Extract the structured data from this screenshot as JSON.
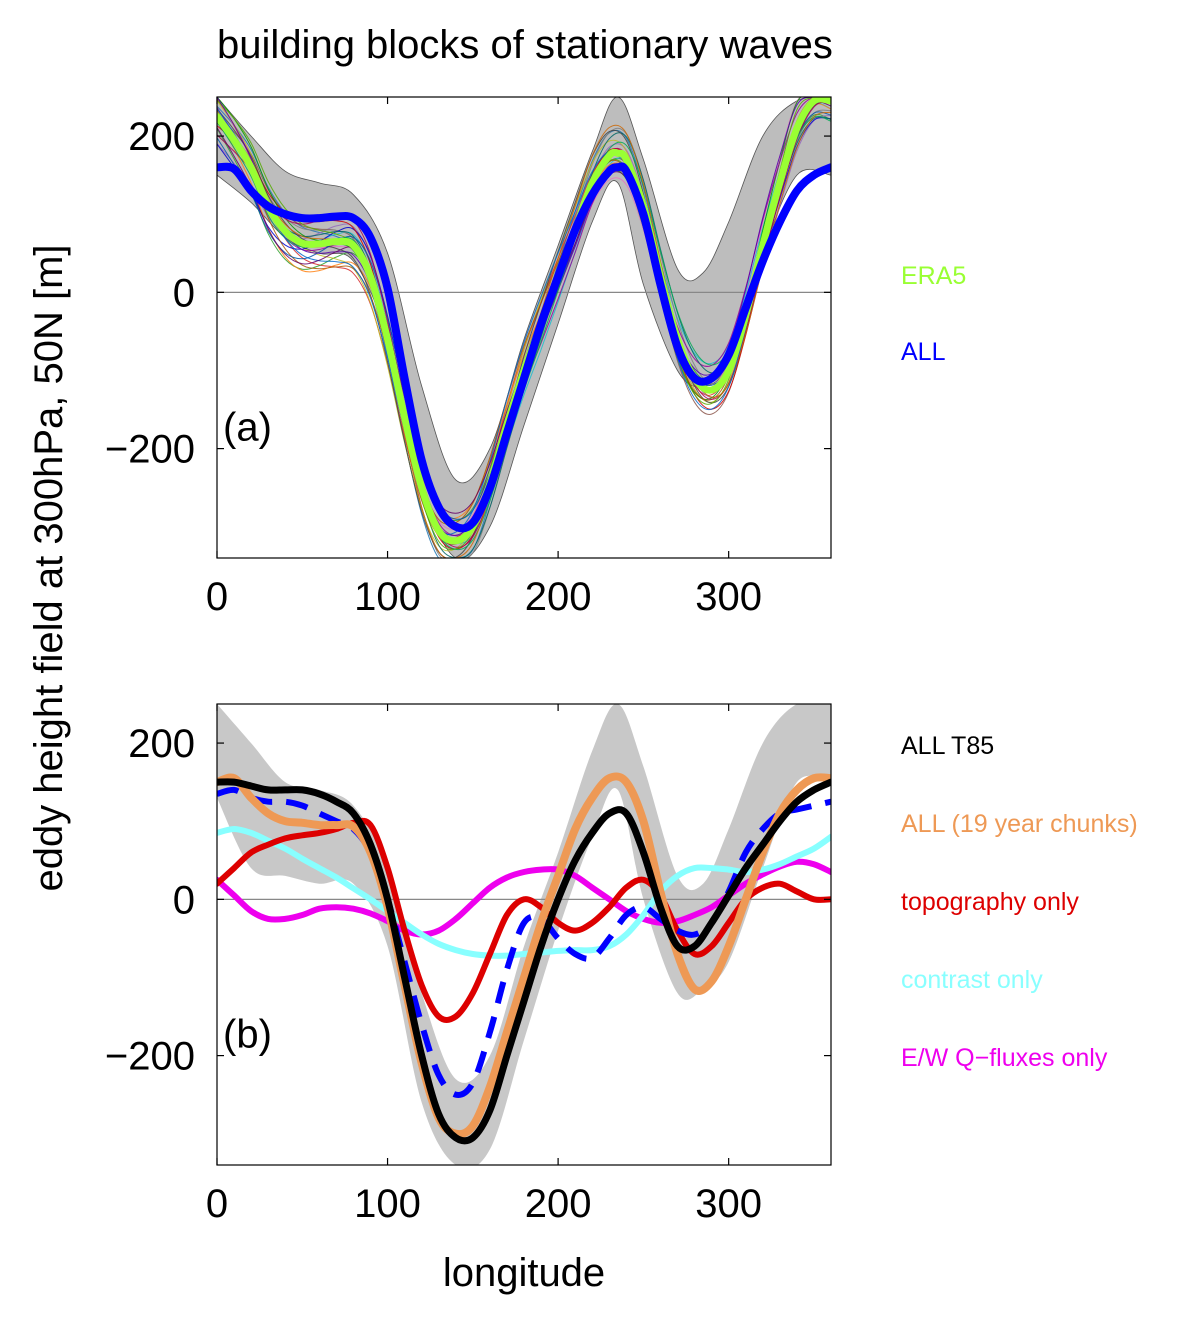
{
  "figure": {
    "title": "building blocks of stationary waves",
    "ylabel": "eddy height field at 300hPa, 50N [m]",
    "xlabel": "longitude"
  },
  "chart_data": [
    {
      "type": "line",
      "panel_label": "(a)",
      "xlim": [
        0,
        360
      ],
      "ylim": [
        -340,
        250
      ],
      "xticks": [
        0,
        100,
        200,
        300
      ],
      "yticks": [
        -200,
        0,
        200
      ],
      "ytick_labels": [
        "−200",
        "0",
        "200"
      ],
      "zero_line": true,
      "grid": false,
      "legend_position": "right",
      "band": {
        "x": [
          0,
          20,
          40,
          60,
          80,
          100,
          120,
          140,
          160,
          180,
          200,
          220,
          235,
          250,
          270,
          285,
          300,
          320,
          340,
          360
        ],
        "upper": [
          250,
          200,
          155,
          140,
          125,
          50,
          -120,
          -240,
          -200,
          -60,
          60,
          180,
          250,
          170,
          30,
          25,
          90,
          200,
          245,
          250
        ],
        "lower": [
          150,
          115,
          70,
          50,
          40,
          -60,
          -250,
          -345,
          -300,
          -170,
          -40,
          90,
          140,
          10,
          -100,
          -120,
          -90,
          50,
          150,
          150
        ],
        "color": "#bdbdbd"
      },
      "ensemble": {
        "count": 25,
        "base": "ERA5",
        "amplitude": 30,
        "colors": [
          "#1f77b4",
          "#d62728",
          "#2ca02c",
          "#9467bd",
          "#8c564b",
          "#e377c2",
          "#17becf",
          "#7f7f7f",
          "#bcbd22",
          "#ff7f0e",
          "#0000cc",
          "#cc0000",
          "#009900",
          "#990099",
          "#006666",
          "#444444",
          "#aa5500",
          "#0055aa",
          "#aa0055",
          "#55aa00",
          "#5500aa",
          "#00aa55",
          "#cc6600",
          "#0066cc",
          "#660066"
        ]
      },
      "series": [
        {
          "name": "ERA5",
          "color": "#99ff33",
          "width": 7,
          "dash": "",
          "x": [
            0,
            10,
            20,
            30,
            40,
            50,
            60,
            70,
            80,
            90,
            100,
            110,
            120,
            130,
            140,
            150,
            160,
            170,
            180,
            190,
            200,
            210,
            220,
            230,
            235,
            240,
            250,
            260,
            270,
            280,
            290,
            300,
            310,
            320,
            330,
            340,
            350,
            360
          ],
          "values": [
            225,
            195,
            160,
            110,
            78,
            63,
            62,
            65,
            60,
            20,
            -60,
            -160,
            -250,
            -305,
            -318,
            -300,
            -245,
            -170,
            -100,
            -40,
            20,
            80,
            140,
            175,
            178,
            170,
            110,
            20,
            -60,
            -110,
            -125,
            -100,
            -30,
            60,
            140,
            210,
            245,
            245
          ]
        },
        {
          "name": "ALL",
          "color": "#0000ff",
          "width": 8,
          "dash": "",
          "x": [
            0,
            10,
            20,
            30,
            40,
            50,
            60,
            70,
            80,
            90,
            100,
            110,
            120,
            130,
            140,
            150,
            160,
            170,
            180,
            190,
            200,
            210,
            220,
            230,
            235,
            240,
            250,
            260,
            270,
            280,
            290,
            300,
            310,
            320,
            330,
            340,
            350,
            360
          ],
          "values": [
            160,
            158,
            130,
            110,
            100,
            95,
            95,
            97,
            95,
            70,
            5,
            -110,
            -215,
            -275,
            -300,
            -295,
            -250,
            -180,
            -110,
            -40,
            20,
            80,
            125,
            155,
            160,
            155,
            100,
            10,
            -70,
            -110,
            -110,
            -80,
            -20,
            40,
            90,
            130,
            150,
            160
          ]
        }
      ]
    },
    {
      "type": "line",
      "panel_label": "(b)",
      "xlim": [
        0,
        360
      ],
      "ylim": [
        -340,
        250
      ],
      "xticks": [
        0,
        100,
        200,
        300
      ],
      "yticks": [
        -200,
        0,
        200
      ],
      "ytick_labels": [
        "−200",
        "0",
        "200"
      ],
      "zero_line": true,
      "grid": false,
      "legend_position": "right",
      "band": {
        "x": [
          0,
          20,
          40,
          60,
          80,
          100,
          120,
          140,
          160,
          180,
          200,
          220,
          235,
          250,
          270,
          285,
          300,
          320,
          340,
          360
        ],
        "upper": [
          250,
          200,
          150,
          140,
          120,
          40,
          -120,
          -230,
          -200,
          -60,
          60,
          190,
          250,
          170,
          30,
          20,
          90,
          200,
          250,
          250
        ],
        "lower": [
          130,
          40,
          30,
          20,
          20,
          -60,
          -260,
          -345,
          -320,
          -180,
          -40,
          80,
          140,
          0,
          -120,
          -115,
          -80,
          40,
          150,
          150
        ],
        "color": "#c8c8c8"
      },
      "series": [
        {
          "name": "ALL T85",
          "color": "#000000",
          "width": 7,
          "dash": "",
          "x": [
            0,
            10,
            20,
            30,
            40,
            50,
            60,
            70,
            80,
            90,
            100,
            110,
            120,
            130,
            140,
            150,
            160,
            170,
            180,
            190,
            200,
            210,
            220,
            230,
            240,
            250,
            260,
            270,
            280,
            290,
            300,
            310,
            320,
            330,
            340,
            350,
            360
          ],
          "values": [
            150,
            150,
            145,
            140,
            140,
            140,
            135,
            125,
            110,
            70,
            0,
            -100,
            -200,
            -275,
            -305,
            -305,
            -270,
            -200,
            -130,
            -60,
            0,
            50,
            85,
            110,
            110,
            60,
            -10,
            -60,
            -60,
            -30,
            5,
            40,
            70,
            100,
            125,
            140,
            150
          ]
        },
        {
          "name": "ALL (19 year chunks)",
          "color": "#ee9955",
          "width": 8,
          "dash": "",
          "x": [
            0,
            10,
            20,
            30,
            40,
            50,
            60,
            70,
            80,
            90,
            100,
            110,
            120,
            130,
            140,
            150,
            160,
            170,
            180,
            190,
            200,
            210,
            220,
            230,
            240,
            250,
            260,
            270,
            280,
            290,
            300,
            310,
            320,
            330,
            340,
            350,
            360
          ],
          "values": [
            150,
            155,
            130,
            110,
            100,
            98,
            95,
            95,
            93,
            60,
            -10,
            -110,
            -210,
            -280,
            -300,
            -290,
            -240,
            -170,
            -100,
            -30,
            30,
            90,
            130,
            155,
            150,
            100,
            10,
            -70,
            -115,
            -105,
            -60,
            0,
            60,
            110,
            140,
            155,
            155
          ]
        },
        {
          "name": "",
          "color": "#0000ff",
          "width": 6,
          "dash": "22,14",
          "x": [
            0,
            10,
            20,
            30,
            40,
            50,
            60,
            70,
            80,
            90,
            100,
            110,
            120,
            130,
            140,
            150,
            160,
            170,
            180,
            190,
            200,
            210,
            220,
            230,
            240,
            250,
            260,
            270,
            280,
            290,
            300,
            310,
            320,
            330,
            340,
            350,
            360
          ],
          "values": [
            135,
            140,
            130,
            125,
            125,
            120,
            110,
            100,
            90,
            60,
            0,
            -80,
            -160,
            -225,
            -250,
            -235,
            -170,
            -90,
            -30,
            -25,
            -50,
            -70,
            -75,
            -50,
            -20,
            -10,
            -25,
            -40,
            -45,
            -30,
            10,
            60,
            90,
            110,
            115,
            120,
            125
          ]
        },
        {
          "name": "topography only",
          "color": "#dd0000",
          "width": 6,
          "dash": "",
          "x": [
            0,
            10,
            20,
            30,
            40,
            50,
            60,
            70,
            80,
            90,
            100,
            110,
            120,
            130,
            140,
            150,
            160,
            170,
            180,
            190,
            200,
            210,
            220,
            230,
            240,
            250,
            260,
            270,
            280,
            290,
            300,
            310,
            320,
            330,
            340,
            350,
            360
          ],
          "values": [
            20,
            40,
            60,
            70,
            78,
            82,
            85,
            90,
            98,
            95,
            40,
            -40,
            -110,
            -150,
            -150,
            -120,
            -70,
            -20,
            0,
            -10,
            -30,
            -40,
            -30,
            -10,
            15,
            25,
            5,
            -40,
            -70,
            -60,
            -30,
            0,
            15,
            20,
            10,
            0,
            0
          ]
        },
        {
          "name": "contrast only",
          "color": "#88ffff",
          "width": 6,
          "dash": "",
          "x": [
            0,
            10,
            20,
            30,
            40,
            50,
            60,
            70,
            80,
            90,
            100,
            110,
            120,
            130,
            140,
            150,
            160,
            170,
            180,
            190,
            200,
            210,
            220,
            230,
            240,
            250,
            260,
            270,
            280,
            290,
            300,
            310,
            320,
            330,
            340,
            350,
            360
          ],
          "values": [
            85,
            90,
            85,
            75,
            65,
            52,
            40,
            28,
            14,
            0,
            -15,
            -30,
            -45,
            -57,
            -65,
            -70,
            -72,
            -72,
            -70,
            -68,
            -66,
            -65,
            -65,
            -60,
            -45,
            -20,
            10,
            30,
            40,
            40,
            38,
            35,
            38,
            45,
            55,
            65,
            80
          ]
        },
        {
          "name": "E/W Q−fluxes only",
          "color": "#ee00ee",
          "width": 6,
          "dash": "",
          "x": [
            0,
            10,
            20,
            30,
            40,
            50,
            60,
            70,
            80,
            90,
            100,
            110,
            120,
            130,
            140,
            150,
            160,
            170,
            180,
            190,
            200,
            210,
            220,
            230,
            240,
            250,
            260,
            270,
            280,
            290,
            300,
            310,
            320,
            330,
            340,
            350,
            360
          ],
          "values": [
            25,
            5,
            -15,
            -25,
            -25,
            -20,
            -12,
            -10,
            -12,
            -18,
            -28,
            -40,
            -45,
            -40,
            -25,
            -5,
            15,
            28,
            35,
            38,
            38,
            30,
            15,
            0,
            -15,
            -25,
            -30,
            -28,
            -20,
            -10,
            5,
            20,
            32,
            42,
            48,
            45,
            35
          ]
        }
      ]
    }
  ],
  "legend_a": [
    {
      "label": "ERA5",
      "color": "#99ff33"
    },
    {
      "label": "ALL",
      "color": "#0000ff"
    }
  ],
  "legend_b": [
    {
      "label": "ALL T85",
      "color": "#000000"
    },
    {
      "label": "ALL (19 year chunks)",
      "color": "#ee9955"
    },
    {
      "label": "topography only",
      "color": "#dd0000"
    },
    {
      "label": "contrast only",
      "color": "#88ffff"
    },
    {
      "label": "E/W Q−fluxes only",
      "color": "#ee00ee"
    }
  ]
}
